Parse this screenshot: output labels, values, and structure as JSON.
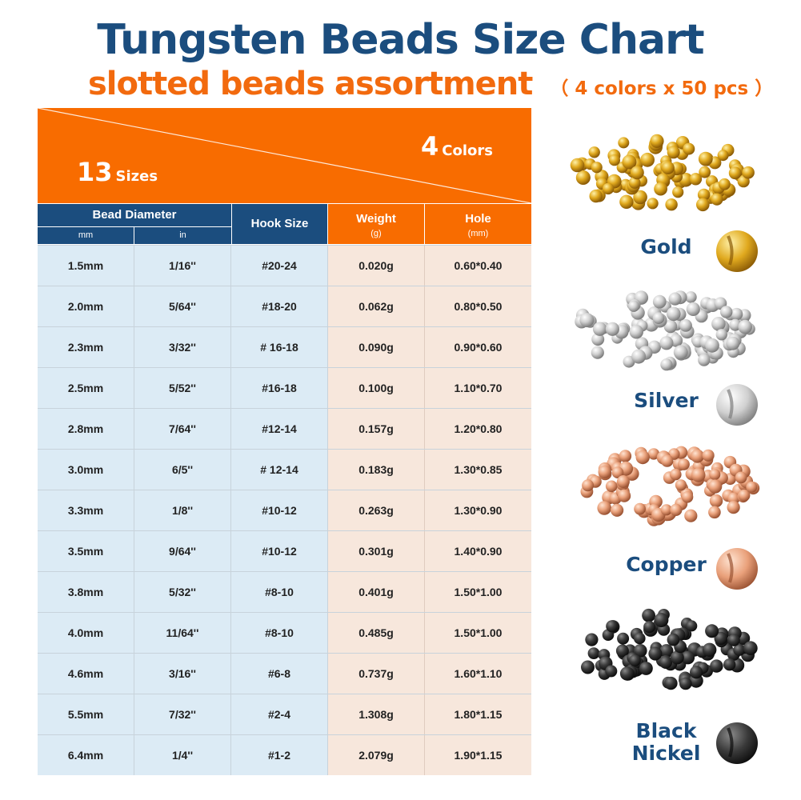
{
  "header": {
    "title": "Tungsten Beads Size Chart",
    "subtitle": "slotted beads assortment",
    "subtitle_note": "（ 4 colors x 50 pcs ）",
    "sizes_count": "13",
    "sizes_label": "Sizes",
    "colors_count": "4",
    "colors_label": "Colors"
  },
  "table": {
    "bead_diameter": "Bead Diameter",
    "mm": "mm",
    "in": "in",
    "hook_size": "Hook Size",
    "weight": "Weight",
    "weight_unit": "(g)",
    "hole": "Hole",
    "hole_unit": "(mm)",
    "rows": [
      {
        "mm": "1.5mm",
        "in": "1/16''",
        "hook": "#20-24",
        "weight": "0.020g",
        "hole": "0.60*0.40"
      },
      {
        "mm": "2.0mm",
        "in": "5/64''",
        "hook": "#18-20",
        "weight": "0.062g",
        "hole": "0.80*0.50"
      },
      {
        "mm": "2.3mm",
        "in": "3/32''",
        "hook": "# 16-18",
        "weight": "0.090g",
        "hole": "0.90*0.60"
      },
      {
        "mm": "2.5mm",
        "in": "5/52''",
        "hook": "#16-18",
        "weight": "0.100g",
        "hole": "1.10*0.70"
      },
      {
        "mm": "2.8mm",
        "in": "7/64''",
        "hook": "#12-14",
        "weight": "0.157g",
        "hole": "1.20*0.80"
      },
      {
        "mm": "3.0mm",
        "in": "6/5''",
        "hook": "# 12-14",
        "weight": "0.183g",
        "hole": "1.30*0.85"
      },
      {
        "mm": "3.3mm",
        "in": "1/8''",
        "hook": "#10-12",
        "weight": "0.263g",
        "hole": "1.30*0.90"
      },
      {
        "mm": "3.5mm",
        "in": "9/64''",
        "hook": "#10-12",
        "weight": "0.301g",
        "hole": "1.40*0.90"
      },
      {
        "mm": "3.8mm",
        "in": "5/32''",
        "hook": "#8-10",
        "weight": "0.401g",
        "hole": "1.50*1.00"
      },
      {
        "mm": "4.0mm",
        "in": "11/64''",
        "hook": "#8-10",
        "weight": "0.485g",
        "hole": "1.50*1.00"
      },
      {
        "mm": "4.6mm",
        "in": "3/16''",
        "hook": "#6-8",
        "weight": "0.737g",
        "hole": "1.60*1.10"
      },
      {
        "mm": "5.5mm",
        "in": "7/32''",
        "hook": "#2-4",
        "weight": "1.308g",
        "hole": "1.80*1.15"
      },
      {
        "mm": "6.4mm",
        "in": "1/4''",
        "hook": "#1-2",
        "weight": "2.079g",
        "hole": "1.90*1.15"
      }
    ]
  },
  "colors": [
    {
      "name": "Gold",
      "light": "#fff1a8",
      "mid": "#e0a91e",
      "dark": "#8a5a05"
    },
    {
      "name": "Silver",
      "light": "#ffffff",
      "mid": "#d0d0d0",
      "dark": "#7d7d7d"
    },
    {
      "name": "Copper",
      "light": "#ffe4d2",
      "mid": "#e9a07a",
      "dark": "#9a5232"
    },
    {
      "name": "Black Nickel",
      "light": "#8a8a8a",
      "mid": "#3a3a3a",
      "dark": "#0d0d0d"
    }
  ],
  "palette": {
    "blue": "#1b4d7e",
    "orange": "#f86c00",
    "subtitle_orange": "#f26a0e",
    "blue_cell": "#dcebf5",
    "peach_cell": "#f7e7dc"
  }
}
